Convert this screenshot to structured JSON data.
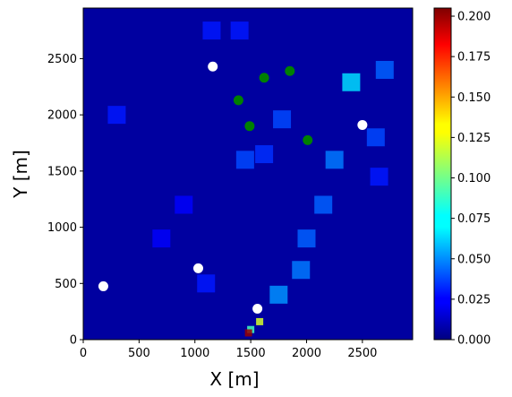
{
  "chart_data": {
    "type": "heatmap",
    "title": "",
    "xlabel": "X [m]",
    "ylabel": "Y [m]",
    "xlim": [
      0,
      2950
    ],
    "ylim": [
      0,
      2950
    ],
    "colormap": "jet",
    "grid": false,
    "x_ticks": [
      "0",
      "500",
      "1000",
      "1500",
      "2000",
      "2500"
    ],
    "y_ticks": [
      "0",
      "500",
      "1000",
      "1500",
      "2000",
      "2500"
    ],
    "colorbar": {
      "min": 0.0,
      "max": 0.205,
      "ticks": [
        "0.000",
        "0.025",
        "0.050",
        "0.075",
        "0.100",
        "0.125",
        "0.150",
        "0.175",
        "0.200"
      ]
    },
    "white_points": [
      {
        "x": 1160,
        "y": 2430
      },
      {
        "x": 2500,
        "y": 1910
      },
      {
        "x": 1030,
        "y": 635
      },
      {
        "x": 180,
        "y": 475
      },
      {
        "x": 1560,
        "y": 275
      }
    ],
    "green_points": [
      {
        "x": 1620,
        "y": 2330
      },
      {
        "x": 1850,
        "y": 2390
      },
      {
        "x": 1390,
        "y": 2130
      },
      {
        "x": 1490,
        "y": 1900
      },
      {
        "x": 2010,
        "y": 1775
      }
    ],
    "hotspots": [
      {
        "x": 2400,
        "y": 2290,
        "value": 0.07
      },
      {
        "x": 1780,
        "y": 1960,
        "value": 0.04
      },
      {
        "x": 1450,
        "y": 1600,
        "value": 0.04
      },
      {
        "x": 2250,
        "y": 1600,
        "value": 0.05
      },
      {
        "x": 2150,
        "y": 1200,
        "value": 0.045
      },
      {
        "x": 2000,
        "y": 900,
        "value": 0.045
      },
      {
        "x": 1950,
        "y": 620,
        "value": 0.05
      },
      {
        "x": 1750,
        "y": 400,
        "value": 0.055
      },
      {
        "x": 1620,
        "y": 1650,
        "value": 0.035
      },
      {
        "x": 1400,
        "y": 2750,
        "value": 0.03
      },
      {
        "x": 1150,
        "y": 2750,
        "value": 0.03
      },
      {
        "x": 300,
        "y": 2000,
        "value": 0.03
      },
      {
        "x": 700,
        "y": 900,
        "value": 0.025
      },
      {
        "x": 1100,
        "y": 500,
        "value": 0.03
      },
      {
        "x": 900,
        "y": 1200,
        "value": 0.025
      },
      {
        "x": 1580,
        "y": 160,
        "value": 0.12
      },
      {
        "x": 1500,
        "y": 90,
        "value": 0.09
      },
      {
        "x": 1480,
        "y": 60,
        "value": 0.2
      },
      {
        "x": 2700,
        "y": 2400,
        "value": 0.045
      },
      {
        "x": 2650,
        "y": 1450,
        "value": 0.03
      },
      {
        "x": 2620,
        "y": 1800,
        "value": 0.04
      }
    ]
  }
}
